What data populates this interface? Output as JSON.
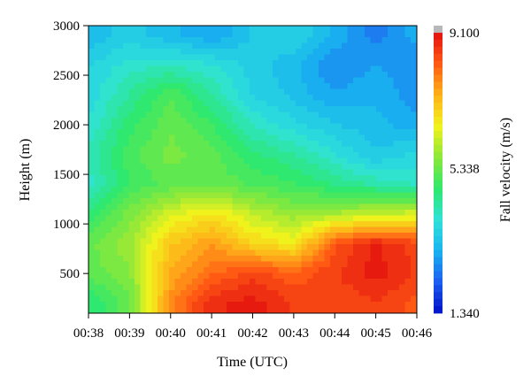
{
  "chart_data": {
    "type": "heatmap",
    "title": "",
    "xlabel": "Time (UTC)",
    "ylabel": "Height (m)",
    "colorbar_label": "Fall velocity (m/s)",
    "x_ticks": [
      "00:38",
      "00:39",
      "00:40",
      "00:41",
      "00:42",
      "00:43",
      "00:44",
      "00:45",
      "00:46"
    ],
    "y_ticks": [
      "500",
      "1000",
      "1500",
      "2000",
      "2500",
      "3000"
    ],
    "y_tick_values": [
      500,
      1000,
      1500,
      2000,
      2500,
      3000
    ],
    "ylim": [
      100,
      3000
    ],
    "colorbar_ticks": [
      "9.100",
      "5.338",
      "1.340"
    ],
    "colorbar_tick_values": [
      9.1,
      5.338,
      1.34
    ],
    "vlim": [
      1.34,
      9.1
    ],
    "grid": false,
    "x": [
      "00:38",
      "00:39",
      "00:40",
      "00:41",
      "00:42",
      "00:43",
      "00:44",
      "00:45",
      "00:46"
    ],
    "y": [
      200,
      500,
      800,
      1100,
      1400,
      1700,
      2000,
      2300,
      2600,
      2900
    ],
    "z": [
      [
        4.6,
        5.3,
        7.8,
        8.8,
        9.0,
        8.6,
        8.4,
        8.6,
        8.3
      ],
      [
        5.2,
        5.6,
        7.4,
        8.1,
        8.5,
        8.2,
        8.6,
        9.0,
        8.6
      ],
      [
        5.3,
        5.8,
        7.1,
        7.6,
        6.9,
        6.6,
        8.3,
        8.9,
        8.5
      ],
      [
        4.7,
        5.5,
        6.3,
        6.7,
        6.1,
        5.7,
        5.9,
        6.1,
        6.3
      ],
      [
        4.0,
        4.9,
        5.2,
        5.3,
        5.1,
        4.9,
        4.6,
        4.3,
        4.1
      ],
      [
        4.2,
        5.0,
        5.5,
        5.2,
        4.7,
        4.4,
        3.9,
        3.4,
        3.7
      ],
      [
        3.9,
        4.8,
        5.3,
        4.9,
        4.1,
        3.7,
        3.4,
        3.2,
        3.0
      ],
      [
        3.7,
        4.4,
        5.1,
        4.4,
        3.6,
        3.3,
        2.9,
        3.1,
        2.7
      ],
      [
        3.6,
        4.0,
        4.1,
        3.9,
        3.5,
        3.2,
        2.6,
        2.9,
        2.6
      ],
      [
        3.2,
        3.5,
        3.2,
        2.9,
        3.4,
        3.6,
        3.1,
        2.5,
        3.0
      ]
    ]
  },
  "colors": {
    "colormap": [
      "#0010c8",
      "#1d5ef0",
      "#19b4f0",
      "#2fe3d8",
      "#2ee86a",
      "#8ce83a",
      "#f2f21c",
      "#ffb21a",
      "#ff5a14",
      "#e41210"
    ],
    "colorbar_cap": "#b8b8b8",
    "axis": "#000000"
  }
}
